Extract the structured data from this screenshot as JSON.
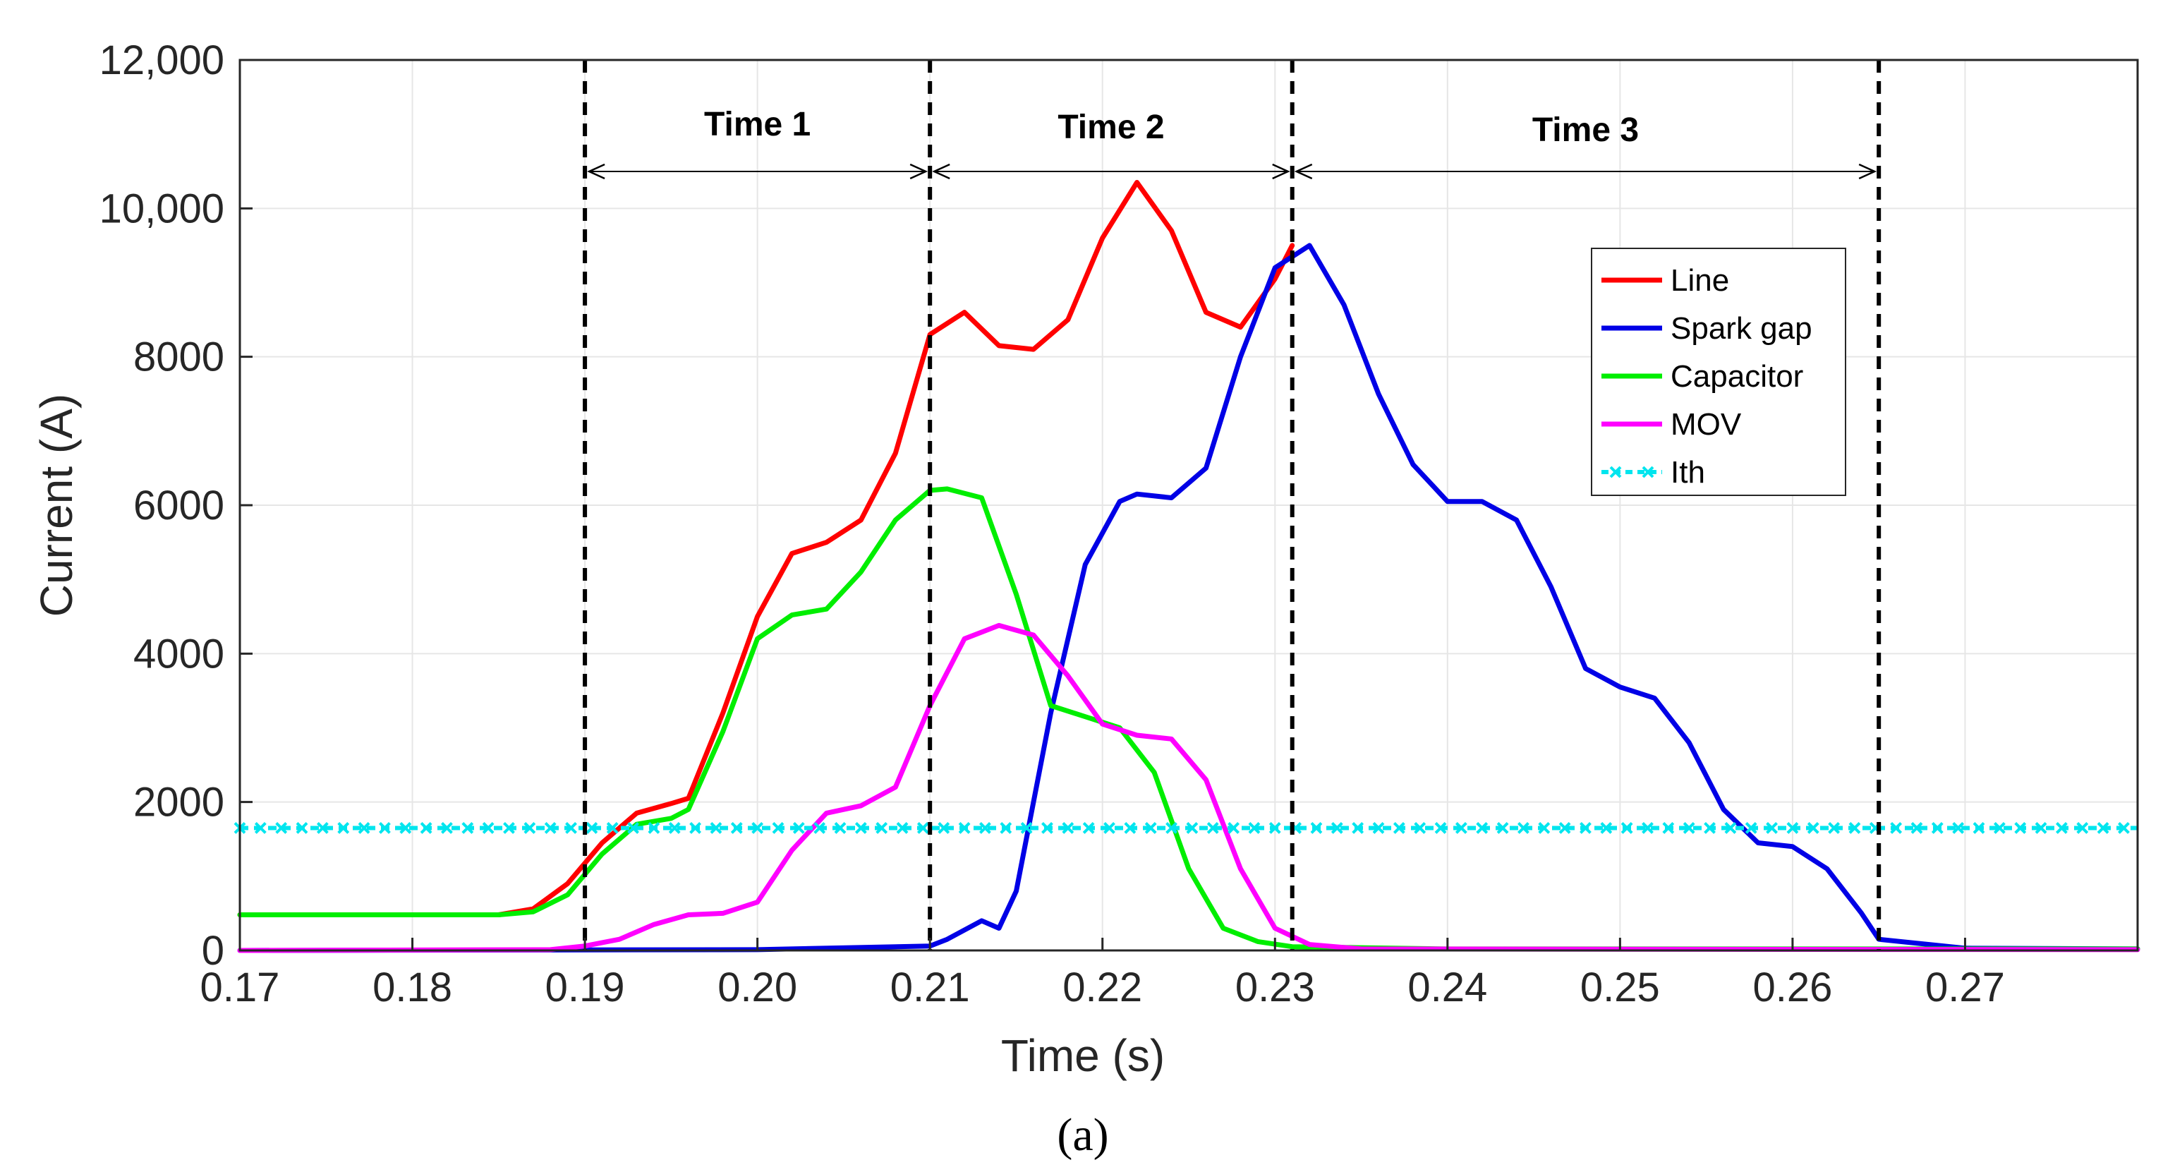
{
  "chart_data": {
    "type": "line",
    "caption": "(a)",
    "xlabel": "Time (s)",
    "ylabel": "Current (A)",
    "xlim": [
      0.17,
      0.28
    ],
    "ylim": [
      0,
      12000
    ],
    "x_ticks": [
      0.17,
      0.18,
      0.19,
      0.2,
      0.21,
      0.22,
      0.23,
      0.24,
      0.25,
      0.26,
      0.27
    ],
    "x_tick_labels": [
      "0.17",
      "0.18",
      "0.19",
      "0.20",
      "0.21",
      "0.22",
      "0.23",
      "0.24",
      "0.25",
      "0.26",
      "0.27"
    ],
    "y_ticks": [
      0,
      2000,
      4000,
      6000,
      8000,
      10000,
      12000
    ],
    "y_tick_labels": [
      "0",
      "2000",
      "4000",
      "6000",
      "8000",
      "10,000",
      "12,000"
    ],
    "grid": true,
    "legend_position": "top-right",
    "series": [
      {
        "name": "Line",
        "color": "#ff0000",
        "style": "solid",
        "x": [
          0.17,
          0.18,
          0.185,
          0.187,
          0.189,
          0.191,
          0.193,
          0.195,
          0.196,
          0.198,
          0.2,
          0.202,
          0.204,
          0.206,
          0.208,
          0.21,
          0.212,
          0.214,
          0.216,
          0.218,
          0.22,
          0.222,
          0.224,
          0.226,
          0.228,
          0.23,
          0.231
        ],
        "y": [
          480,
          480,
          480,
          560,
          900,
          1450,
          1850,
          1980,
          2050,
          3200,
          4500,
          5350,
          5500,
          5800,
          6700,
          8300,
          8600,
          8150,
          8100,
          8500,
          9600,
          10350,
          9700,
          8600,
          8400,
          9050,
          9500
        ]
      },
      {
        "name": "Spark gap",
        "color": "#0000e6",
        "style": "solid",
        "x": [
          0.17,
          0.2,
          0.21,
          0.211,
          0.213,
          0.214,
          0.215,
          0.217,
          0.219,
          0.221,
          0.222,
          0.224,
          0.226,
          0.228,
          0.23,
          0.232,
          0.234,
          0.236,
          0.238,
          0.24,
          0.242,
          0.244,
          0.246,
          0.248,
          0.25,
          0.252,
          0.254,
          0.256,
          0.258,
          0.26,
          0.262,
          0.264,
          0.265,
          0.27,
          0.28
        ],
        "y": [
          0,
          10,
          60,
          150,
          400,
          300,
          800,
          3200,
          5200,
          6050,
          6150,
          6100,
          6500,
          8000,
          9200,
          9500,
          8700,
          7500,
          6550,
          6050,
          6050,
          5800,
          4900,
          3800,
          3550,
          3400,
          2800,
          1900,
          1450,
          1400,
          1100,
          500,
          150,
          30,
          20
        ]
      },
      {
        "name": "Capacitor",
        "color": "#00ee00",
        "style": "solid",
        "x": [
          0.17,
          0.18,
          0.185,
          0.187,
          0.189,
          0.191,
          0.193,
          0.195,
          0.196,
          0.198,
          0.2,
          0.202,
          0.204,
          0.206,
          0.208,
          0.21,
          0.211,
          0.213,
          0.215,
          0.217,
          0.219,
          0.221,
          0.223,
          0.225,
          0.227,
          0.229,
          0.231,
          0.24,
          0.28
        ],
        "y": [
          480,
          480,
          480,
          520,
          750,
          1300,
          1700,
          1780,
          1900,
          2950,
          4200,
          4520,
          4600,
          5100,
          5800,
          6200,
          6220,
          6100,
          4800,
          3300,
          3150,
          3000,
          2400,
          1100,
          300,
          120,
          50,
          20,
          20
        ]
      },
      {
        "name": "MOV",
        "color": "#ff00ff",
        "style": "solid",
        "x": [
          0.17,
          0.188,
          0.19,
          0.192,
          0.194,
          0.196,
          0.198,
          0.2,
          0.202,
          0.204,
          0.206,
          0.208,
          0.21,
          0.212,
          0.214,
          0.216,
          0.218,
          0.22,
          0.222,
          0.224,
          0.226,
          0.228,
          0.23,
          0.232,
          0.235,
          0.28
        ],
        "y": [
          0,
          10,
          60,
          150,
          350,
          480,
          500,
          650,
          1350,
          1850,
          1950,
          2200,
          3300,
          4200,
          4380,
          4250,
          3700,
          3050,
          2900,
          2850,
          2300,
          1100,
          300,
          80,
          20,
          10
        ]
      },
      {
        "name": "Ith",
        "color": "#00e5ee",
        "style": "dashed-x-markers",
        "x": [
          0.17,
          0.28
        ],
        "y": [
          1650,
          1650
        ]
      }
    ],
    "vertical_markers": [
      0.19,
      0.21,
      0.231,
      0.265
    ],
    "annotations": [
      {
        "label": "Time 1",
        "from": 0.19,
        "to": 0.21
      },
      {
        "label": "Time 2",
        "from": 0.21,
        "to": 0.231
      },
      {
        "label": "Time 3",
        "from": 0.231,
        "to": 0.265
      }
    ]
  }
}
